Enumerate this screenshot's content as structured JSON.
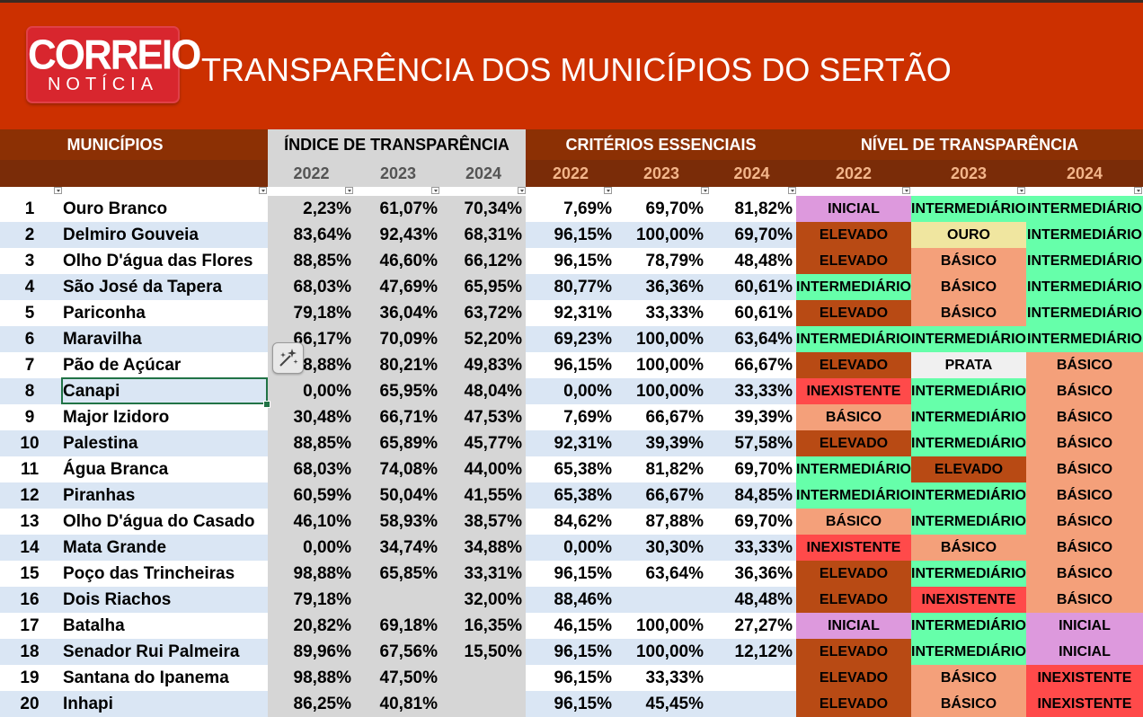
{
  "logo": {
    "line1": "CORREIO",
    "line2": "NOTÍCIA"
  },
  "title": "TRANSPARÊNCIA DOS MUNICÍPIOS DO SERTÃO",
  "headers": {
    "municipios": "MUNICÍPIOS",
    "indice": "ÍNDICE DE TRANSPARÊNCIA",
    "criterios": "CRITÉRIOS ESSENCIAIS",
    "nivel": "NÍVEL DE TRANSPARÊNCIA",
    "years": [
      "2022",
      "2023",
      "2024"
    ]
  },
  "level_colors": {
    "INICIAL": "#dd99dd",
    "INTERMEDIÁRIO": "#66ffaa",
    "ELEVADO": "#b84a14",
    "OURO": "#f0e6a0",
    "BÁSICO": "#f4a07a",
    "PRATA": "#f0f0f0",
    "INEXISTENTE": "#ff4a4a"
  },
  "rows": [
    {
      "n": "1",
      "name": "Ouro Branco",
      "i22": "2,23%",
      "i23": "61,07%",
      "i24": "70,34%",
      "c22": "7,69%",
      "c23": "69,70%",
      "c24": "81,82%",
      "l22": "INICIAL",
      "l23": "INTERMEDIÁRIO",
      "l24": "INTERMEDIÁRIO"
    },
    {
      "n": "2",
      "name": "Delmiro Gouveia",
      "i22": "83,64%",
      "i23": "92,43%",
      "i24": "68,31%",
      "c22": "96,15%",
      "c23": "100,00%",
      "c24": "69,70%",
      "l22": "ELEVADO",
      "l23": "OURO",
      "l24": "INTERMEDIÁRIO"
    },
    {
      "n": "3",
      "name": "Olho D'água das Flores",
      "i22": "88,85%",
      "i23": "46,60%",
      "i24": "66,12%",
      "c22": "96,15%",
      "c23": "78,79%",
      "c24": "48,48%",
      "l22": "ELEVADO",
      "l23": "BÁSICO",
      "l24": "INTERMEDIÁRIO"
    },
    {
      "n": "4",
      "name": "São José da Tapera",
      "i22": "68,03%",
      "i23": "47,69%",
      "i24": "65,95%",
      "c22": "80,77%",
      "c23": "36,36%",
      "c24": "60,61%",
      "l22": "INTERMEDIÁRIO",
      "l23": "BÁSICO",
      "l24": "INTERMEDIÁRIO"
    },
    {
      "n": "5",
      "name": "Pariconha",
      "i22": "79,18%",
      "i23": "36,04%",
      "i24": "63,72%",
      "c22": "92,31%",
      "c23": "33,33%",
      "c24": "60,61%",
      "l22": "ELEVADO",
      "l23": "BÁSICO",
      "l24": "INTERMEDIÁRIO"
    },
    {
      "n": "6",
      "name": "Maravilha",
      "i22": "66,17%",
      "i23": "70,09%",
      "i24": "52,20%",
      "c22": "69,23%",
      "c23": "100,00%",
      "c24": "63,64%",
      "l22": "INTERMEDIÁRIO",
      "l23": "INTERMEDIÁRIO",
      "l24": "INTERMEDIÁRIO"
    },
    {
      "n": "7",
      "name": "Pão de Açúcar",
      "i22": "88,88%",
      "i23": "80,21%",
      "i24": "49,83%",
      "c22": "96,15%",
      "c23": "100,00%",
      "c24": "66,67%",
      "l22": "ELEVADO",
      "l23": "PRATA",
      "l24": "BÁSICO"
    },
    {
      "n": "8",
      "name": "Canapi",
      "i22": "0,00%",
      "i23": "65,95%",
      "i24": "48,04%",
      "c22": "0,00%",
      "c23": "100,00%",
      "c24": "33,33%",
      "l22": "INEXISTENTE",
      "l23": "INTERMEDIÁRIO",
      "l24": "BÁSICO"
    },
    {
      "n": "9",
      "name": "Major Izidoro",
      "i22": "30,48%",
      "i23": "66,71%",
      "i24": "47,53%",
      "c22": "7,69%",
      "c23": "66,67%",
      "c24": "39,39%",
      "l22": "BÁSICO",
      "l23": "INTERMEDIÁRIO",
      "l24": "BÁSICO"
    },
    {
      "n": "10",
      "name": "Palestina",
      "i22": "88,85%",
      "i23": "65,89%",
      "i24": "45,77%",
      "c22": "92,31%",
      "c23": "39,39%",
      "c24": "57,58%",
      "l22": "ELEVADO",
      "l23": "INTERMEDIÁRIO",
      "l24": "BÁSICO"
    },
    {
      "n": "11",
      "name": "Água Branca",
      "i22": "68,03%",
      "i23": "74,08%",
      "i24": "44,00%",
      "c22": "65,38%",
      "c23": "81,82%",
      "c24": "69,70%",
      "l22": "INTERMEDIÁRIO",
      "l23": "ELEVADO",
      "l24": "BÁSICO"
    },
    {
      "n": "12",
      "name": "Piranhas",
      "i22": "60,59%",
      "i23": "50,04%",
      "i24": "41,55%",
      "c22": "65,38%",
      "c23": "66,67%",
      "c24": "84,85%",
      "l22": "INTERMEDIÁRIO",
      "l23": "INTERMEDIÁRIO",
      "l24": "BÁSICO"
    },
    {
      "n": "13",
      "name": "Olho D'água do Casado",
      "i22": "46,10%",
      "i23": "58,93%",
      "i24": "38,57%",
      "c22": "84,62%",
      "c23": "87,88%",
      "c24": "69,70%",
      "l22": "BÁSICO",
      "l23": "INTERMEDIÁRIO",
      "l24": "BÁSICO"
    },
    {
      "n": "14",
      "name": "Mata Grande",
      "i22": "0,00%",
      "i23": "34,74%",
      "i24": "34,88%",
      "c22": "0,00%",
      "c23": "30,30%",
      "c24": "33,33%",
      "l22": "INEXISTENTE",
      "l23": "BÁSICO",
      "l24": "BÁSICO"
    },
    {
      "n": "15",
      "name": "Poço das Trincheiras",
      "i22": "98,88%",
      "i23": "65,85%",
      "i24": "33,31%",
      "c22": "96,15%",
      "c23": "63,64%",
      "c24": "36,36%",
      "l22": "ELEVADO",
      "l23": "INTERMEDIÁRIO",
      "l24": "BÁSICO"
    },
    {
      "n": "16",
      "name": "Dois Riachos",
      "i22": "79,18%",
      "i23": "",
      "i24": "32,00%",
      "c22": "88,46%",
      "c23": "",
      "c24": "48,48%",
      "l22": "ELEVADO",
      "l23": "INEXISTENTE",
      "l24": "BÁSICO"
    },
    {
      "n": "17",
      "name": "Batalha",
      "i22": "20,82%",
      "i23": "69,18%",
      "i24": "16,35%",
      "c22": "46,15%",
      "c23": "100,00%",
      "c24": "27,27%",
      "l22": "INICIAL",
      "l23": "INTERMEDIÁRIO",
      "l24": "INICIAL"
    },
    {
      "n": "18",
      "name": "Senador Rui Palmeira",
      "i22": "89,96%",
      "i23": "67,56%",
      "i24": "15,50%",
      "c22": "96,15%",
      "c23": "100,00%",
      "c24": "12,12%",
      "l22": "ELEVADO",
      "l23": "INTERMEDIÁRIO",
      "l24": "INICIAL"
    },
    {
      "n": "19",
      "name": "Santana do Ipanema",
      "i22": "98,88%",
      "i23": "47,50%",
      "i24": "",
      "c22": "96,15%",
      "c23": "33,33%",
      "c24": "",
      "l22": "ELEVADO",
      "l23": "BÁSICO",
      "l24": "INEXISTENTE"
    },
    {
      "n": "20",
      "name": "Inhapi",
      "i22": "86,25%",
      "i23": "40,81%",
      "i24": "",
      "c22": "96,15%",
      "c23": "45,45%",
      "c24": "",
      "l22": "ELEVADO",
      "l23": "BÁSICO",
      "l24": "INEXISTENTE"
    }
  ]
}
